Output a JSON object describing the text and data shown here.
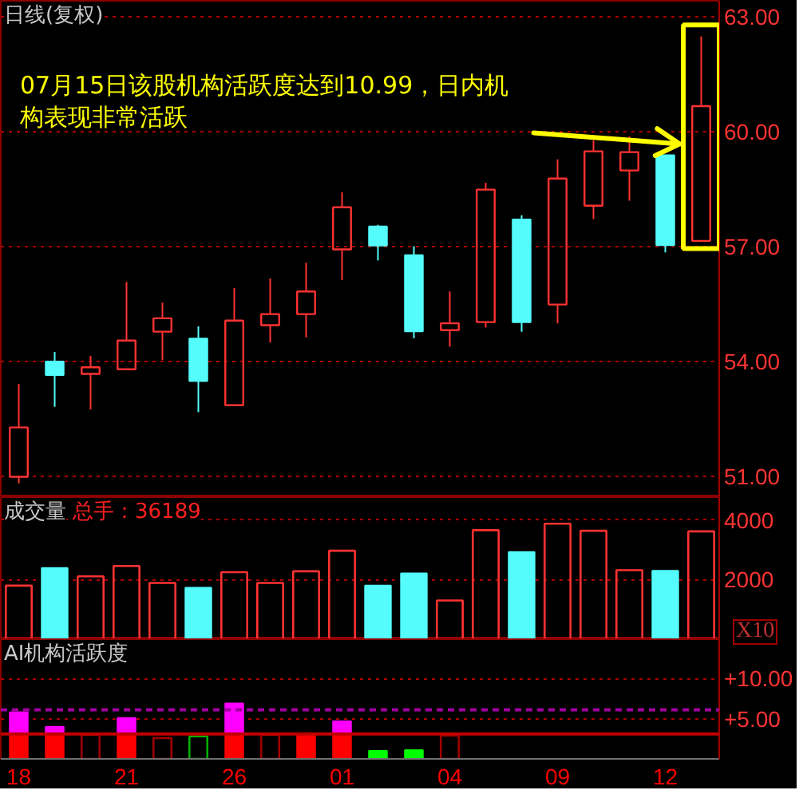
{
  "chart_data": [
    {
      "type": "candlestick",
      "title": "日线(复权)",
      "categories": [
        "18",
        null,
        null,
        "21",
        null,
        null,
        "26",
        null,
        null,
        "01",
        null,
        null,
        "04",
        null,
        null,
        "09",
        null,
        null,
        "12",
        null
      ],
      "ohlc": [
        [
          50.99,
          53.42,
          50.82,
          52.28
        ],
        [
          54.0,
          54.25,
          52.82,
          53.65
        ],
        [
          53.68,
          54.15,
          52.75,
          53.85
        ],
        [
          53.8,
          56.08,
          53.8,
          54.55
        ],
        [
          54.78,
          55.54,
          54.04,
          55.13
        ],
        [
          54.6,
          54.92,
          52.68,
          53.49
        ],
        [
          52.86,
          55.92,
          52.86,
          55.07
        ],
        [
          54.95,
          56.17,
          54.5,
          55.24
        ],
        [
          55.24,
          56.58,
          54.63,
          55.83
        ],
        [
          56.93,
          58.42,
          56.13,
          58.03
        ],
        [
          57.53,
          57.57,
          56.64,
          57.03
        ],
        [
          56.78,
          57.01,
          54.61,
          54.79
        ],
        [
          54.82,
          55.83,
          54.39,
          55.0
        ],
        [
          55.03,
          58.67,
          54.89,
          58.49
        ],
        [
          57.71,
          57.82,
          54.78,
          55.03
        ],
        [
          55.49,
          59.28,
          55.0,
          58.78
        ],
        [
          58.07,
          59.78,
          57.72,
          59.49
        ],
        [
          58.99,
          59.88,
          58.2,
          59.47
        ],
        [
          59.39,
          59.39,
          56.85,
          57.04
        ],
        [
          57.15,
          62.49,
          57.15,
          60.67
        ]
      ],
      "colors": [
        "#ff3232",
        "#54fcfc",
        "#ff3232",
        "#ff3232",
        "#ff3232",
        "#54fcfc",
        "#ff3232",
        "#ff3232",
        "#ff3232",
        "#ff3232",
        "#54fcfc",
        "#54fcfc",
        "#ff3232",
        "#ff3232",
        "#54fcfc",
        "#ff3232",
        "#ff3232",
        "#ff3232",
        "#54fcfc",
        "#ff3232"
      ],
      "ylim": [
        50.46,
        63.42
      ],
      "yticks": [
        {
          "value": 51,
          "label": "51.00"
        },
        {
          "value": 54,
          "label": "54.00"
        },
        {
          "value": 57,
          "label": "57.00"
        },
        {
          "value": 60,
          "label": "60.00"
        },
        {
          "value": 63,
          "label": "63.00"
        }
      ],
      "grid": "y",
      "tick_labels": "y",
      "annotations": [
        "07月15日该股机构活跃度达到10.99，日内机构表现非常活跃"
      ]
    },
    {
      "type": "bar",
      "title": "成交量",
      "subtitle": "总手：36189",
      "categories": [
        "18",
        null,
        null,
        "21",
        null,
        null,
        "26",
        null,
        null,
        "01",
        null,
        null,
        "04",
        null,
        null,
        "09",
        null,
        null,
        "12",
        null
      ],
      "values": [
        1800,
        2390,
        2110,
        2460,
        1890,
        1730,
        2250,
        1890,
        2280,
        2970,
        1800,
        2210,
        1300,
        3660,
        2930,
        3880,
        3640,
        2320,
        2300,
        3620
      ],
      "colors": [
        "#ff3232",
        "#54fcfc",
        "#ff3232",
        "#ff3232",
        "#ff3232",
        "#54fcfc",
        "#ff3232",
        "#ff3232",
        "#ff3232",
        "#ff3232",
        "#54fcfc",
        "#54fcfc",
        "#ff3232",
        "#ff3232",
        "#54fcfc",
        "#ff3232",
        "#ff3232",
        "#ff3232",
        "#54fcfc",
        "#ff3232"
      ],
      "ylim": [
        0,
        4770
      ],
      "yticks": [
        2000,
        4000
      ],
      "grid": "y",
      "tick_labels": "y",
      "annotations": [
        "X10"
      ]
    },
    {
      "type": "bar",
      "title": "AI机构活跃度",
      "categories": [
        "18",
        null,
        null,
        "21",
        null,
        null,
        "26",
        null,
        null,
        "01",
        null,
        null,
        "04",
        null,
        null,
        "09",
        null,
        null,
        "12",
        null
      ],
      "stacked": true,
      "series": [
        {
          "colors": [
            "#ff0000",
            "#ff0000",
            null,
            "#ff0000",
            null,
            null,
            "#ff0000",
            null,
            "#ff0000",
            "#ff0000",
            "#00ff00",
            "#00ff00",
            null,
            null,
            null,
            null,
            null,
            null,
            null,
            null
          ],
          "values": [
            3.1,
            3.1,
            null,
            3.1,
            null,
            null,
            3.1,
            null,
            3.1,
            3.1,
            1.0,
            1.1,
            null,
            null,
            null,
            null,
            null,
            null,
            null,
            null
          ]
        },
        {
          "color": "#ff00ff",
          "values": [
            2.7,
            0.9,
            null,
            2.0,
            null,
            null,
            3.8,
            null,
            null,
            1.6,
            null,
            null,
            null,
            null,
            null,
            null,
            null,
            null,
            null,
            null
          ]
        },
        {
          "colors": [
            null,
            null,
            "#a00000",
            null,
            "#a00000",
            "#00b000",
            null,
            "#a00000",
            null,
            null,
            null,
            null,
            "#a00000",
            null,
            null,
            null,
            null,
            null,
            null,
            null
          ],
          "values": [
            null,
            null,
            3.0,
            null,
            2.6,
            2.8,
            null,
            3.0,
            null,
            null,
            null,
            null,
            2.9,
            null,
            null,
            null,
            null,
            null,
            null,
            null
          ]
        }
      ],
      "ylim": [
        0,
        14.9
      ],
      "yticks": [
        {
          "value": 5,
          "label": "+5.00"
        },
        {
          "value": 10,
          "label": "+10.00"
        }
      ],
      "grid": "y",
      "ref_lines": [
        {
          "axis": "y",
          "value": 3.1,
          "color": "#c00000"
        },
        {
          "axis": "y",
          "value": 6.1,
          "color": "#a000a0",
          "line_style": "dashed"
        }
      ]
    }
  ]
}
